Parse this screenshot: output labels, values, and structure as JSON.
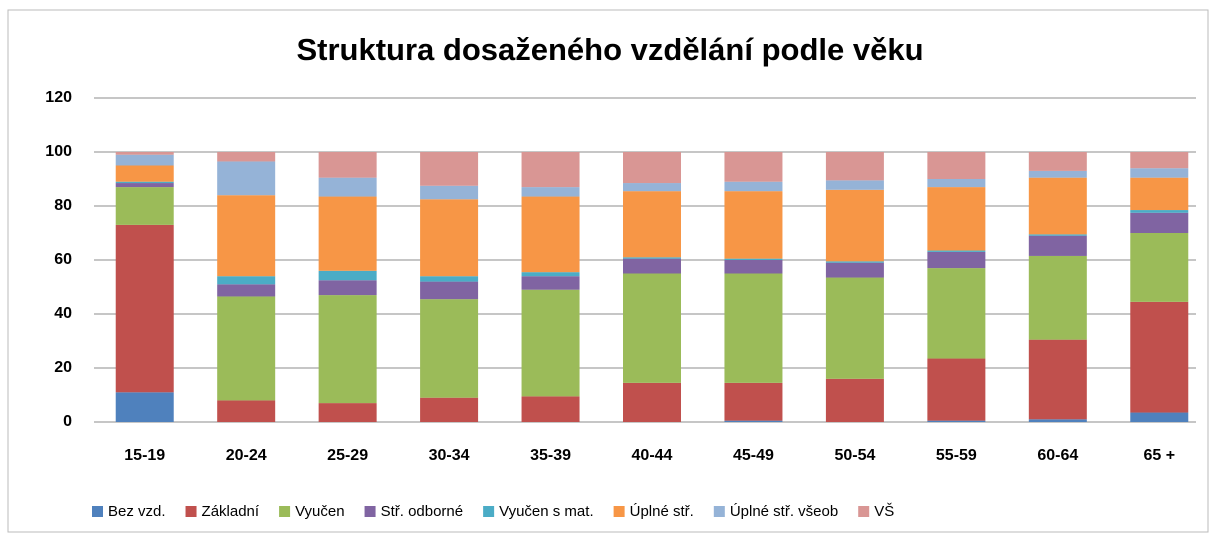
{
  "chart_data": {
    "type": "stacked_bar",
    "title": "Struktura dosaženého vzdělání podle věku",
    "categories": [
      "15-19",
      "20-24",
      "25-29",
      "30-34",
      "35-39",
      "40-44",
      "45-49",
      "50-54",
      "55-59",
      "60-64",
      "65 +"
    ],
    "series": [
      {
        "name": "Bez vzd.",
        "color": "#4f81bd",
        "values": [
          11,
          0,
          0,
          0,
          0,
          0,
          0.5,
          0,
          0.5,
          1,
          3.5
        ]
      },
      {
        "name": "Základní",
        "color": "#c0504d",
        "values": [
          62,
          8,
          7,
          9,
          9.5,
          14.5,
          14,
          16,
          23,
          29.5,
          41
        ]
      },
      {
        "name": "Vyučen",
        "color": "#9bbb59",
        "values": [
          14,
          38.5,
          40,
          36.5,
          39.5,
          40.5,
          40.5,
          37.5,
          33.5,
          31,
          25.5
        ]
      },
      {
        "name": "Stř. odborné",
        "color": "#8064a2",
        "values": [
          1.5,
          4.5,
          5.5,
          6.5,
          5,
          5.5,
          5,
          5.5,
          6,
          7.5,
          7.5
        ]
      },
      {
        "name": "Vyučen s mat.",
        "color": "#4bacc6",
        "values": [
          0.5,
          3,
          3.5,
          2,
          1.5,
          0.5,
          0.5,
          0.5,
          0.5,
          0.5,
          1
        ]
      },
      {
        "name": "Úplné stř.",
        "color": "#f79646",
        "values": [
          6,
          30,
          27.5,
          28.5,
          28,
          24.5,
          25,
          26.5,
          23.5,
          21,
          12
        ]
      },
      {
        "name": "Úplné stř. všeob",
        "color": "#95b3d7",
        "values": [
          4,
          12.5,
          7,
          5,
          3.5,
          3,
          3.5,
          3.5,
          3,
          2.5,
          3.5
        ]
      },
      {
        "name": "VŠ",
        "color": "#d99694",
        "values": [
          1,
          3.5,
          9.5,
          12.5,
          13,
          11.5,
          11,
          10.5,
          10,
          7,
          6
        ]
      }
    ],
    "ylim": [
      0,
      120
    ],
    "yticks": [
      0,
      20,
      40,
      60,
      80,
      100,
      120
    ],
    "grid": true,
    "legend": "bottom"
  }
}
